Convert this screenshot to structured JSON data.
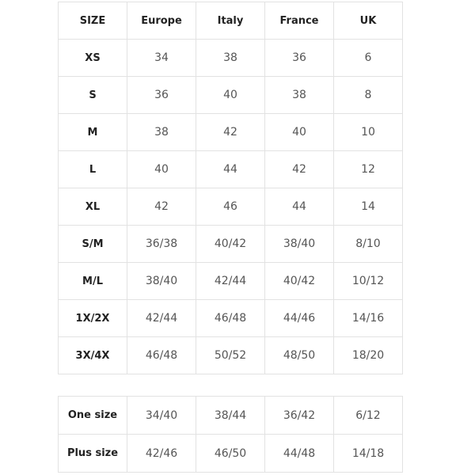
{
  "size_table": {
    "header": [
      "SIZE",
      "Europe",
      "Italy",
      "France",
      "UK"
    ],
    "rows": [
      [
        "XS",
        "34",
        "38",
        "36",
        "6"
      ],
      [
        "S",
        "36",
        "40",
        "38",
        "8"
      ],
      [
        "M",
        "38",
        "42",
        "40",
        "10"
      ],
      [
        "L",
        "40",
        "44",
        "42",
        "12"
      ],
      [
        "XL",
        "42",
        "46",
        "44",
        "14"
      ],
      [
        "S/M",
        "36/38",
        "40/42",
        "38/40",
        "8/10"
      ],
      [
        "M/L",
        "38/40",
        "42/44",
        "40/42",
        "10/12"
      ],
      [
        "1X/2X",
        "42/44",
        "46/48",
        "44/46",
        "14/16"
      ],
      [
        "3X/4X",
        "46/48",
        "50/52",
        "48/50",
        "18/20"
      ]
    ]
  },
  "extra_table": {
    "rows": [
      [
        "One size",
        "34/40",
        "38/44",
        "36/42",
        "6/12"
      ],
      [
        "Plus size",
        "42/46",
        "46/50",
        "44/48",
        "14/18"
      ]
    ]
  }
}
